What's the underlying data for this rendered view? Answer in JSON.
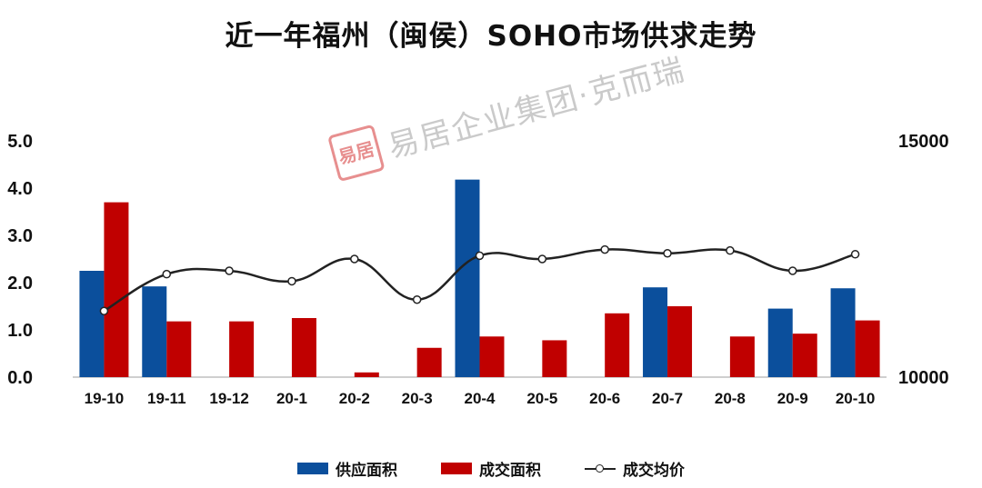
{
  "chart_data": {
    "type": "bar",
    "title": "近一年福州（闽侯）SOHO市场供求走势",
    "categories": [
      "19-10",
      "19-11",
      "19-12",
      "20-1",
      "20-2",
      "20-3",
      "20-4",
      "20-5",
      "20-6",
      "20-7",
      "20-8",
      "20-9",
      "20-10"
    ],
    "y_left": {
      "ylim": [
        0,
        5
      ],
      "ticks": [
        "0.0",
        "1.0",
        "2.0",
        "3.0",
        "4.0",
        "5.0"
      ]
    },
    "y_right": {
      "ylim": [
        10000,
        15000
      ],
      "ticks": [
        "10000",
        "15000"
      ]
    },
    "series": [
      {
        "name": "供应面积",
        "type": "bar",
        "axis": "left",
        "color": "#0b4f9c",
        "values": [
          2.25,
          1.92,
          null,
          null,
          null,
          null,
          4.18,
          null,
          null,
          1.9,
          null,
          1.45,
          1.88
        ]
      },
      {
        "name": "成交面积",
        "type": "bar",
        "axis": "left",
        "color": "#c00000",
        "values": [
          3.7,
          1.18,
          1.18,
          1.25,
          0.1,
          0.62,
          0.86,
          0.78,
          1.35,
          1.5,
          0.86,
          0.92,
          1.2
        ]
      },
      {
        "name": "成交均价",
        "type": "line",
        "axis": "right",
        "color": "#222222",
        "values": [
          11400,
          12180,
          12250,
          12030,
          12500,
          11640,
          12570,
          12500,
          12700,
          12620,
          12680,
          12250,
          12600
        ]
      }
    ],
    "grid": false,
    "legend": "bottom"
  },
  "watermark": {
    "seal": "易居",
    "text": "易居企业集团·克而瑞"
  }
}
